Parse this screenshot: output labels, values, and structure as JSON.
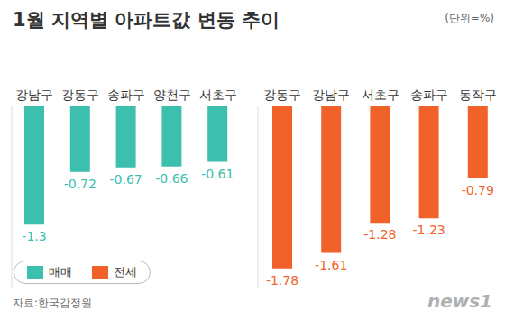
{
  "title": "1월 지역별 아파트값 변동 추이",
  "subtitle": "(단위=%)",
  "source": "자료:한국감정원",
  "watermark": "news1",
  "chart_data": [
    {
      "type": "bar",
      "categories": [
        "강남구",
        "강동구",
        "송파구",
        "양천구",
        "서초구"
      ],
      "series": [
        {
          "name": "매매",
          "color": "#3dbfae",
          "values": [
            -1.3,
            -0.72,
            -0.67,
            -0.66,
            -0.61
          ]
        }
      ],
      "ylim": [
        -2,
        0
      ],
      "tick_labels": "x",
      "data_labels": true,
      "grid": false,
      "legend": "lower left"
    },
    {
      "type": "bar",
      "categories": [
        "강동구",
        "강남구",
        "서초구",
        "송파구",
        "동작구"
      ],
      "series": [
        {
          "name": "전세",
          "color": "#f0622a",
          "values": [
            -1.78,
            -1.61,
            -1.28,
            -1.23,
            -0.79
          ]
        }
      ],
      "ylim": [
        -2,
        0
      ],
      "tick_labels": "x",
      "data_labels": true,
      "grid": false
    }
  ]
}
